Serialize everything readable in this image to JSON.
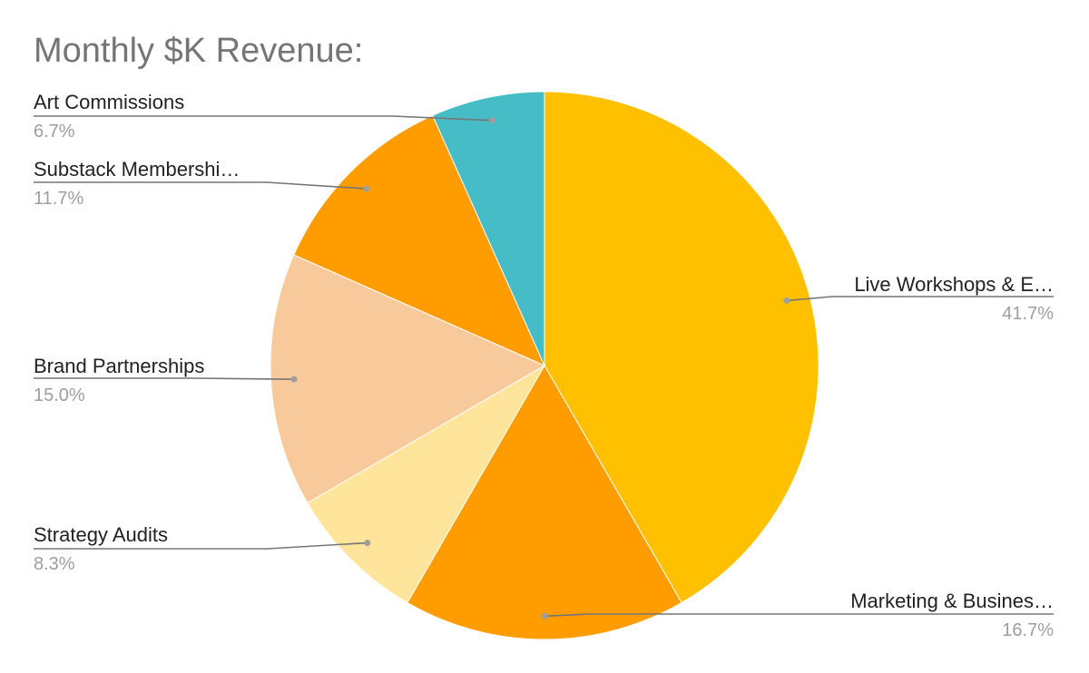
{
  "chart_data": {
    "type": "pie",
    "title": "Monthly $K Revenue:",
    "start_angle_deg": 0,
    "direction": "clockwise",
    "slices": [
      {
        "label": "Live Workshops & E…",
        "percent_label": "41.7%",
        "value": 41.7,
        "color": "#FFC000"
      },
      {
        "label": "Marketing & Busines…",
        "percent_label": "16.7%",
        "value": 16.7,
        "color": "#FF9D00"
      },
      {
        "label": "Strategy Audits",
        "percent_label": "8.3%",
        "value": 8.3,
        "color": "#FFE49C"
      },
      {
        "label": "Brand Partnerships",
        "percent_label": "15.0%",
        "value": 15.0,
        "color": "#F8CA9B"
      },
      {
        "label": "Substack Membershi…",
        "percent_label": "11.7%",
        "value": 11.7,
        "color": "#FF9D00"
      },
      {
        "label": "Art Commissions",
        "percent_label": "6.7%",
        "value": 6.7,
        "color": "#45BCC6"
      }
    ],
    "legend": "none"
  }
}
